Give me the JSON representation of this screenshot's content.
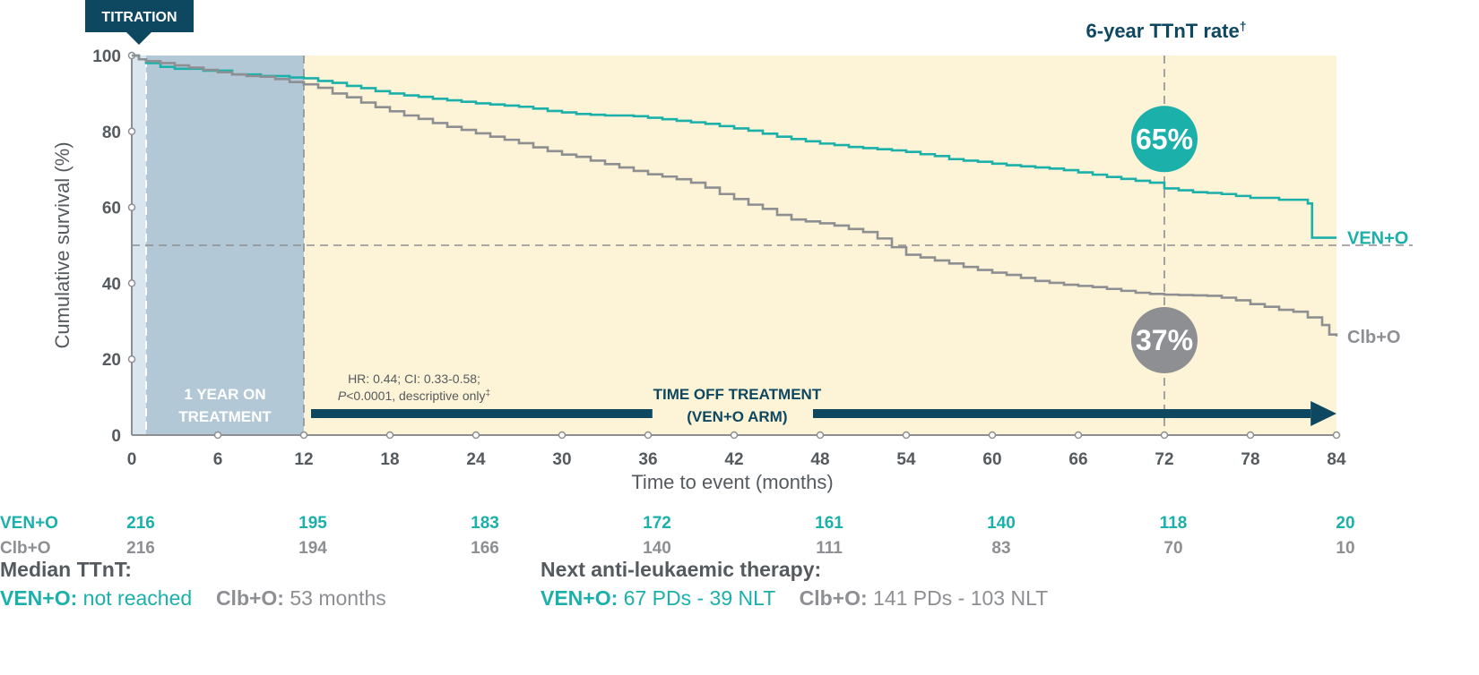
{
  "chart_data": {
    "type": "line",
    "subtype": "kaplan-meier",
    "xlabel": "Time to event (months)",
    "ylabel": "Cumulative survival (%)",
    "xlim": [
      0,
      84
    ],
    "ylim": [
      0,
      100
    ],
    "xticks": [
      0,
      6,
      12,
      18,
      24,
      30,
      36,
      42,
      48,
      54,
      60,
      66,
      72,
      78,
      84
    ],
    "yticks": [
      0,
      20,
      40,
      60,
      80,
      100
    ],
    "reference_line_y": 50,
    "reference_line_x": 72,
    "series": [
      {
        "name": "VEN+O",
        "color": "#1bb0aa",
        "points": [
          [
            0,
            100
          ],
          [
            0.5,
            99
          ],
          [
            1,
            98
          ],
          [
            2,
            97
          ],
          [
            3,
            96.5
          ],
          [
            5,
            96
          ],
          [
            7,
            95
          ],
          [
            9,
            94.6
          ],
          [
            11,
            94.2
          ],
          [
            12,
            94
          ],
          [
            13,
            93.3
          ],
          [
            14,
            92.8
          ],
          [
            15,
            92
          ],
          [
            16,
            91.4
          ],
          [
            17,
            90.6
          ],
          [
            18,
            90
          ],
          [
            19,
            89.5
          ],
          [
            20,
            89.1
          ],
          [
            21,
            88.6
          ],
          [
            22,
            88.2
          ],
          [
            23,
            87.8
          ],
          [
            24,
            87.4
          ],
          [
            25,
            87.1
          ],
          [
            26,
            86.8
          ],
          [
            27,
            86.5
          ],
          [
            28,
            86
          ],
          [
            29,
            85.4
          ],
          [
            30,
            85
          ],
          [
            31,
            84.6
          ],
          [
            32,
            84.4
          ],
          [
            33,
            84.2
          ],
          [
            35,
            84
          ],
          [
            36,
            83.6
          ],
          [
            37,
            83.2
          ],
          [
            38,
            82.8
          ],
          [
            39,
            82.4
          ],
          [
            40,
            82
          ],
          [
            41,
            81.4
          ],
          [
            42,
            80.8
          ],
          [
            43,
            80.2
          ],
          [
            44,
            79.4
          ],
          [
            45,
            78.6
          ],
          [
            46,
            78
          ],
          [
            47,
            77.4
          ],
          [
            48,
            76.8
          ],
          [
            49,
            76.4
          ],
          [
            50,
            75.9
          ],
          [
            51,
            75.6
          ],
          [
            52,
            75.3
          ],
          [
            53,
            75
          ],
          [
            54,
            74.6
          ],
          [
            55,
            74
          ],
          [
            56,
            73.5
          ],
          [
            57,
            72.7
          ],
          [
            58,
            72.3
          ],
          [
            59,
            72
          ],
          [
            60,
            71.5
          ],
          [
            61,
            71.1
          ],
          [
            62,
            70.8
          ],
          [
            63,
            70.5
          ],
          [
            64,
            70.2
          ],
          [
            65,
            69.8
          ],
          [
            66,
            69.2
          ],
          [
            67,
            68.6
          ],
          [
            68,
            68
          ],
          [
            69,
            67.5
          ],
          [
            70,
            67
          ],
          [
            71,
            66.5
          ],
          [
            72,
            65
          ],
          [
            73,
            64.5
          ],
          [
            74,
            64
          ],
          [
            75,
            63.8
          ],
          [
            76,
            63.5
          ],
          [
            77,
            63
          ],
          [
            78,
            62.5
          ],
          [
            80,
            62
          ],
          [
            82,
            61
          ],
          [
            82.3,
            52
          ],
          [
            84,
            52
          ]
        ],
        "end_label": "VEN+O",
        "rate_at_72": "65%"
      },
      {
        "name": "Clb+O",
        "color": "#8d8f92",
        "points": [
          [
            0,
            100
          ],
          [
            0.5,
            99
          ],
          [
            1,
            98.5
          ],
          [
            2,
            98
          ],
          [
            3,
            97.4
          ],
          [
            4,
            96.8
          ],
          [
            5,
            96.2
          ],
          [
            6,
            95.6
          ],
          [
            7,
            95
          ],
          [
            8,
            94.6
          ],
          [
            9,
            94.4
          ],
          [
            10,
            93.8
          ],
          [
            11,
            93
          ],
          [
            12,
            92.4
          ],
          [
            13,
            91.5
          ],
          [
            14,
            90
          ],
          [
            15,
            89
          ],
          [
            16,
            87.6
          ],
          [
            17,
            86.4
          ],
          [
            18,
            85.3
          ],
          [
            19,
            84.2
          ],
          [
            20,
            83.3
          ],
          [
            21,
            82.2
          ],
          [
            22,
            81.2
          ],
          [
            23,
            80.4
          ],
          [
            24,
            79.5
          ],
          [
            25,
            78.6
          ],
          [
            26,
            77.8
          ],
          [
            27,
            76.9
          ],
          [
            28,
            75.8
          ],
          [
            29,
            74.8
          ],
          [
            30,
            73.9
          ],
          [
            31,
            73.3
          ],
          [
            32,
            72.3
          ],
          [
            33,
            71.4
          ],
          [
            34,
            70.5
          ],
          [
            35,
            69.6
          ],
          [
            36,
            68.7
          ],
          [
            37,
            68.1
          ],
          [
            38,
            67.4
          ],
          [
            39,
            66.5
          ],
          [
            40,
            65.2
          ],
          [
            41,
            63.5
          ],
          [
            42,
            62.2
          ],
          [
            43,
            60.7
          ],
          [
            44,
            59.6
          ],
          [
            45,
            58
          ],
          [
            46,
            56.8
          ],
          [
            47,
            56.3
          ],
          [
            48,
            55.8
          ],
          [
            49,
            55.2
          ],
          [
            50,
            54.3
          ],
          [
            51,
            53.5
          ],
          [
            52,
            51.8
          ],
          [
            53,
            49.5
          ],
          [
            54,
            47.5
          ],
          [
            55,
            46.8
          ],
          [
            56,
            46
          ],
          [
            57,
            45.2
          ],
          [
            58,
            44.3
          ],
          [
            59,
            43.5
          ],
          [
            60,
            42.8
          ],
          [
            61,
            42.2
          ],
          [
            62,
            41.4
          ],
          [
            63,
            40.6
          ],
          [
            64,
            40.1
          ],
          [
            65,
            39.6
          ],
          [
            66,
            39.3
          ],
          [
            67,
            39
          ],
          [
            68,
            38.5
          ],
          [
            69,
            38
          ],
          [
            70,
            37.5
          ],
          [
            71,
            37.2
          ],
          [
            72,
            37
          ],
          [
            73,
            36.9
          ],
          [
            74,
            36.8
          ],
          [
            75,
            36.7
          ],
          [
            76,
            36.2
          ],
          [
            77,
            35.5
          ],
          [
            78,
            34.5
          ],
          [
            79,
            33.8
          ],
          [
            80,
            33
          ],
          [
            81,
            32.5
          ],
          [
            82,
            31
          ],
          [
            83,
            29
          ],
          [
            83.5,
            26.5
          ],
          [
            84,
            26
          ]
        ],
        "end_label": "Clb+O",
        "rate_at_72": "37%"
      }
    ],
    "rate_header": "6-year TTnT rate",
    "rate_header_mark": "†",
    "titration_label": "TITRATION",
    "on_treatment_lines": [
      "1 YEAR ON",
      "TREATMENT"
    ],
    "off_treatment_lines": [
      "TIME OFF TREATMENT",
      "(VEN+O ARM)"
    ],
    "hr_line1": "HR: 0.44; CI: 0.33-0.58;",
    "hr_line2_p": "P",
    "hr_line2_rest": "<0.0001, descriptive only",
    "hr_mark": "‡",
    "risk_table": {
      "times": [
        0,
        12,
        24,
        36,
        48,
        60,
        72,
        84
      ],
      "rows": [
        {
          "label": "VEN+O",
          "color": "#1bb0aa",
          "values": [
            "216",
            "195",
            "183",
            "172",
            "161",
            "140",
            "118",
            "20"
          ]
        },
        {
          "label": "Clb+O",
          "color": "#8d8f92",
          "values": [
            "216",
            "194",
            "166",
            "140",
            "111",
            "83",
            "70",
            "10"
          ]
        }
      ]
    }
  },
  "footer": {
    "median_heading": "Median TTnT:",
    "median_ven_label": "VEN+O:",
    "median_ven_value": "not reached",
    "median_clb_label": "Clb+O:",
    "median_clb_value": "53 months",
    "next_heading": "Next anti-leukaemic therapy:",
    "next_ven_label": "VEN+O:",
    "next_ven_value": "67 PDs - 39 NLT",
    "next_clb_label": "Clb+O:",
    "next_clb_value": "141 PDs - 103 NLT"
  },
  "colors": {
    "teal": "#1bb0aa",
    "grey": "#8d8f92",
    "navy": "#0d4760",
    "off_bg": "#fdf3d6",
    "on_bg": "#b3c8d6"
  }
}
